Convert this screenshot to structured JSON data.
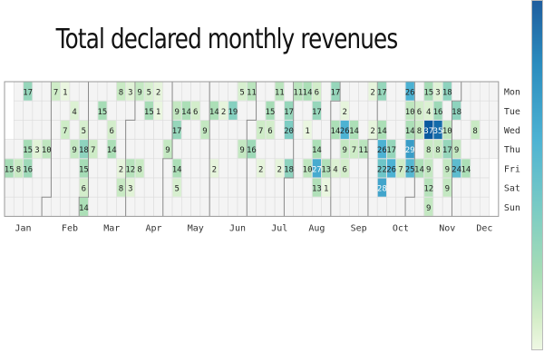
{
  "chart_data": {
    "type": "heatmap",
    "title": "Total declared monthly revenues",
    "weekdays": [
      "Mon",
      "Tue",
      "Wed",
      "Thu",
      "Fri",
      "Sat",
      "Sun"
    ],
    "months": [
      "Jan",
      "Feb",
      "Mar",
      "Apr",
      "May",
      "Jun",
      "Jul",
      "Aug",
      "Sep",
      "Oct",
      "Nov",
      "Dec"
    ],
    "month_tick_weeks": [
      2,
      7,
      11.5,
      16,
      20.5,
      25,
      29.5,
      33.5,
      38,
      42.5,
      47.5,
      51.5
    ],
    "month_start_days": [
      0,
      31,
      59,
      90,
      120,
      151,
      181,
      212,
      243,
      273,
      304,
      334
    ],
    "first_weekday": 3,
    "value_range": [
      0,
      37
    ],
    "colorbar": true,
    "cells": [
      {
        "week": 0,
        "day": 4,
        "value": 15
      },
      {
        "week": 1,
        "day": 4,
        "value": 8
      },
      {
        "week": 2,
        "day": 4,
        "value": 16
      },
      {
        "week": 2,
        "day": 0,
        "value": 17
      },
      {
        "week": 2,
        "day": 3,
        "value": 15
      },
      {
        "week": 3,
        "day": 3,
        "value": 3
      },
      {
        "week": 4,
        "day": 3,
        "value": 10
      },
      {
        "week": 5,
        "day": 0,
        "value": 7
      },
      {
        "week": 6,
        "day": 0,
        "value": 1
      },
      {
        "week": 6,
        "day": 2,
        "value": 7
      },
      {
        "week": 7,
        "day": 1,
        "value": 4
      },
      {
        "week": 7,
        "day": 3,
        "value": 9
      },
      {
        "week": 8,
        "day": 2,
        "value": 5
      },
      {
        "week": 8,
        "day": 3,
        "value": 18
      },
      {
        "week": 8,
        "day": 4,
        "value": 15
      },
      {
        "week": 8,
        "day": 5,
        "value": 6
      },
      {
        "week": 8,
        "day": 6,
        "value": 14
      },
      {
        "week": 9,
        "day": 3,
        "value": 7
      },
      {
        "week": 10,
        "day": 1,
        "value": 15
      },
      {
        "week": 11,
        "day": 2,
        "value": 6
      },
      {
        "week": 11,
        "day": 3,
        "value": 14
      },
      {
        "week": 12,
        "day": 0,
        "value": 8
      },
      {
        "week": 12,
        "day": 4,
        "value": 2
      },
      {
        "week": 12,
        "day": 5,
        "value": 8
      },
      {
        "week": 13,
        "day": 0,
        "value": 3
      },
      {
        "week": 13,
        "day": 4,
        "value": 12
      },
      {
        "week": 13,
        "day": 5,
        "value": 3
      },
      {
        "week": 14,
        "day": 0,
        "value": 9
      },
      {
        "week": 14,
        "day": 4,
        "value": 8
      },
      {
        "week": 15,
        "day": 0,
        "value": 5
      },
      {
        "week": 15,
        "day": 1,
        "value": 15
      },
      {
        "week": 16,
        "day": 1,
        "value": 1
      },
      {
        "week": 16,
        "day": 0,
        "value": 2
      },
      {
        "week": 17,
        "day": 3,
        "value": 9
      },
      {
        "week": 18,
        "day": 1,
        "value": 9
      },
      {
        "week": 18,
        "day": 2,
        "value": 17
      },
      {
        "week": 18,
        "day": 4,
        "value": 14
      },
      {
        "week": 18,
        "day": 5,
        "value": 5
      },
      {
        "week": 19,
        "day": 1,
        "value": 14
      },
      {
        "week": 20,
        "day": 1,
        "value": 6
      },
      {
        "week": 21,
        "day": 2,
        "value": 9
      },
      {
        "week": 22,
        "day": 1,
        "value": 14
      },
      {
        "week": 22,
        "day": 4,
        "value": 2
      },
      {
        "week": 23,
        "day": 1,
        "value": 2
      },
      {
        "week": 24,
        "day": 1,
        "value": 19
      },
      {
        "week": 25,
        "day": 0,
        "value": 5
      },
      {
        "week": 25,
        "day": 3,
        "value": 9
      },
      {
        "week": 26,
        "day": 3,
        "value": 16
      },
      {
        "week": 26,
        "day": 0,
        "value": 11
      },
      {
        "week": 27,
        "day": 4,
        "value": 2
      },
      {
        "week": 27,
        "day": 2,
        "value": 7
      },
      {
        "week": 28,
        "day": 1,
        "value": 15
      },
      {
        "week": 28,
        "day": 2,
        "value": 6
      },
      {
        "week": 29,
        "day": 0,
        "value": 11
      },
      {
        "week": 29,
        "day": 4,
        "value": 2
      },
      {
        "week": 30,
        "day": 1,
        "value": 17
      },
      {
        "week": 30,
        "day": 2,
        "value": 20
      },
      {
        "week": 30,
        "day": 4,
        "value": 18
      },
      {
        "week": 31,
        "day": 0,
        "value": 11
      },
      {
        "week": 32,
        "day": 2,
        "value": 1
      },
      {
        "week": 32,
        "day": 4,
        "value": 10
      },
      {
        "week": 32,
        "day": 0,
        "value": 14
      },
      {
        "week": 33,
        "day": 0,
        "value": 6
      },
      {
        "week": 33,
        "day": 1,
        "value": 17
      },
      {
        "week": 33,
        "day": 3,
        "value": 14
      },
      {
        "week": 33,
        "day": 4,
        "value": 27
      },
      {
        "week": 33,
        "day": 5,
        "value": 13
      },
      {
        "week": 34,
        "day": 4,
        "value": 13
      },
      {
        "week": 34,
        "day": 5,
        "value": 1
      },
      {
        "week": 35,
        "day": 0,
        "value": 17
      },
      {
        "week": 35,
        "day": 2,
        "value": 14
      },
      {
        "week": 35,
        "day": 4,
        "value": 4
      },
      {
        "week": 36,
        "day": 1,
        "value": 2
      },
      {
        "week": 36,
        "day": 2,
        "value": 26
      },
      {
        "week": 36,
        "day": 3,
        "value": 9
      },
      {
        "week": 36,
        "day": 4,
        "value": 6
      },
      {
        "week": 37,
        "day": 2,
        "value": 14
      },
      {
        "week": 37,
        "day": 3,
        "value": 7
      },
      {
        "week": 38,
        "day": 3,
        "value": 11
      },
      {
        "week": 39,
        "day": 0,
        "value": 2
      },
      {
        "week": 39,
        "day": 2,
        "value": 2
      },
      {
        "week": 40,
        "day": 0,
        "value": 17
      },
      {
        "week": 40,
        "day": 2,
        "value": 14
      },
      {
        "week": 40,
        "day": 3,
        "value": 26
      },
      {
        "week": 40,
        "day": 4,
        "value": 22
      },
      {
        "week": 40,
        "day": 5,
        "value": 28
      },
      {
        "week": 41,
        "day": 3,
        "value": 17
      },
      {
        "week": 41,
        "day": 4,
        "value": 26
      },
      {
        "week": 42,
        "day": 4,
        "value": 7
      },
      {
        "week": 43,
        "day": 0,
        "value": 26
      },
      {
        "week": 43,
        "day": 1,
        "value": 10
      },
      {
        "week": 43,
        "day": 2,
        "value": 14
      },
      {
        "week": 43,
        "day": 3,
        "value": 29
      },
      {
        "week": 43,
        "day": 4,
        "value": 25
      },
      {
        "week": 44,
        "day": 1,
        "value": 6
      },
      {
        "week": 44,
        "day": 2,
        "value": 8
      },
      {
        "week": 44,
        "day": 4,
        "value": 14
      },
      {
        "week": 45,
        "day": 0,
        "value": 15
      },
      {
        "week": 45,
        "day": 1,
        "value": 4
      },
      {
        "week": 45,
        "day": 2,
        "value": 37
      },
      {
        "week": 45,
        "day": 3,
        "value": 8
      },
      {
        "week": 45,
        "day": 4,
        "value": 9
      },
      {
        "week": 45,
        "day": 5,
        "value": 12
      },
      {
        "week": 45,
        "day": 6,
        "value": 9
      },
      {
        "week": 46,
        "day": 0,
        "value": 3
      },
      {
        "week": 46,
        "day": 1,
        "value": 16
      },
      {
        "week": 46,
        "day": 2,
        "value": 35
      },
      {
        "week": 46,
        "day": 3,
        "value": 8
      },
      {
        "week": 47,
        "day": 0,
        "value": 18
      },
      {
        "week": 47,
        "day": 2,
        "value": 10
      },
      {
        "week": 47,
        "day": 3,
        "value": 17
      },
      {
        "week": 47,
        "day": 4,
        "value": 9
      },
      {
        "week": 47,
        "day": 5,
        "value": 9
      },
      {
        "week": 48,
        "day": 1,
        "value": 18
      },
      {
        "week": 48,
        "day": 3,
        "value": 9
      },
      {
        "week": 48,
        "day": 4,
        "value": 24
      },
      {
        "week": 49,
        "day": 4,
        "value": 14
      },
      {
        "week": 50,
        "day": 2,
        "value": 8
      }
    ]
  }
}
